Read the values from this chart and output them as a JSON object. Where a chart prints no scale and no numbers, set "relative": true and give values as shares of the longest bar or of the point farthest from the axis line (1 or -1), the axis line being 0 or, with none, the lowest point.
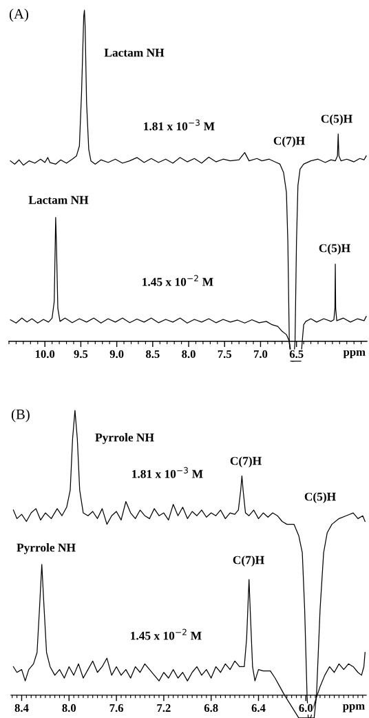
{
  "chart_data": [
    {
      "type": "line",
      "title": "(A)",
      "xlabel": "ppm",
      "relative": true,
      "xlim": [
        10.5,
        5.52
      ],
      "xticks": [
        {
          "value": 10.0,
          "label": "10.0"
        },
        {
          "value": 9.5,
          "label": "9.5"
        },
        {
          "value": 9.0,
          "label": "9.0"
        },
        {
          "value": 8.5,
          "label": "8.5"
        },
        {
          "value": 8.0,
          "label": "8.0"
        },
        {
          "value": 7.5,
          "label": "7.5"
        },
        {
          "value": 7.0,
          "label": "7.0"
        },
        {
          "value": 6.5,
          "label": "6.5"
        },
        {
          "value": 10.5,
          "label": null
        },
        {
          "value": 10.4,
          "label": null
        },
        {
          "value": 10.3,
          "label": null
        },
        {
          "value": 10.2,
          "label": null
        },
        {
          "value": 10.1,
          "label": null
        },
        {
          "value": 9.9,
          "label": null
        },
        {
          "value": 9.8,
          "label": null
        },
        {
          "value": 9.7,
          "label": null
        },
        {
          "value": 9.6,
          "label": null
        },
        {
          "value": 9.4,
          "label": null
        },
        {
          "value": 9.3,
          "label": null
        },
        {
          "value": 9.2,
          "label": null
        },
        {
          "value": 9.1,
          "label": null
        },
        {
          "value": 8.9,
          "label": null
        },
        {
          "value": 8.8,
          "label": null
        },
        {
          "value": 8.7,
          "label": null
        },
        {
          "value": 8.6,
          "label": null
        },
        {
          "value": 8.4,
          "label": null
        },
        {
          "value": 8.3,
          "label": null
        },
        {
          "value": 8.2,
          "label": null
        },
        {
          "value": 8.1,
          "label": null
        },
        {
          "value": 7.9,
          "label": null
        },
        {
          "value": 7.8,
          "label": null
        },
        {
          "value": 7.7,
          "label": null
        },
        {
          "value": 7.6,
          "label": null
        },
        {
          "value": 7.4,
          "label": null
        },
        {
          "value": 7.3,
          "label": null
        },
        {
          "value": 7.2,
          "label": null
        },
        {
          "value": 7.1,
          "label": null
        },
        {
          "value": 6.9,
          "label": null
        },
        {
          "value": 6.8,
          "label": null
        },
        {
          "value": 6.7,
          "label": null
        },
        {
          "value": 6.6,
          "label": null
        },
        {
          "value": 6.4,
          "label": null
        },
        {
          "value": 6.3,
          "label": null
        },
        {
          "value": 6.2,
          "label": null
        },
        {
          "value": 6.1,
          "label": null
        },
        {
          "value": 6.0,
          "label": null
        },
        {
          "value": 5.9,
          "label": null
        },
        {
          "value": 5.8,
          "label": null
        },
        {
          "value": 5.7,
          "label": null
        },
        {
          "value": 5.6,
          "label": null
        }
      ],
      "series": [
        {
          "color": "#000000",
          "x": [
            10.48,
            10.42,
            10.36,
            10.3,
            10.22,
            10.14,
            10.06,
            10.0,
            9.96,
            9.93,
            9.85,
            9.78,
            9.7,
            9.62,
            9.56,
            9.52,
            9.49,
            9.46,
            9.45,
            9.44,
            9.42,
            9.39,
            9.36,
            9.3,
            9.22,
            9.12,
            9.02,
            8.92,
            8.82,
            8.72,
            8.62,
            8.52,
            8.42,
            8.32,
            8.22,
            8.12,
            8.02,
            7.92,
            7.82,
            7.72,
            7.62,
            7.52,
            7.42,
            7.3,
            7.22,
            7.16,
            7.05,
            6.98,
            6.88,
            6.78,
            6.73,
            6.68,
            6.64,
            6.62,
            6.6,
            6.58,
            6.54,
            6.52,
            6.5,
            6.48,
            6.45,
            6.4,
            6.3,
            6.2,
            6.1,
            6.02,
            5.96,
            5.93,
            5.92,
            5.91,
            5.88,
            5.8,
            5.7,
            5.62,
            5.56,
            5.53
          ],
          "values": [
            0.545,
            0.535,
            0.548,
            0.532,
            0.545,
            0.538,
            0.55,
            0.54,
            0.555,
            0.54,
            0.535,
            0.548,
            0.538,
            0.55,
            0.56,
            0.59,
            0.75,
            0.98,
            1.0,
            0.95,
            0.72,
            0.58,
            0.545,
            0.535,
            0.548,
            0.54,
            0.55,
            0.538,
            0.545,
            0.555,
            0.54,
            0.552,
            0.54,
            0.55,
            0.538,
            0.555,
            0.542,
            0.552,
            0.538,
            0.556,
            0.542,
            0.55,
            0.545,
            0.548,
            0.57,
            0.545,
            0.552,
            0.545,
            0.55,
            0.54,
            0.535,
            0.51,
            0.45,
            0.3,
            0.0,
            -0.06,
            -0.06,
            0.0,
            0.3,
            0.47,
            0.52,
            0.535,
            0.545,
            0.55,
            0.54,
            0.548,
            0.545,
            0.56,
            0.626,
            0.56,
            0.545,
            0.55,
            0.542,
            0.552,
            0.548,
            0.56
          ]
        },
        {
          "color": "#000000",
          "x": [
            10.48,
            10.4,
            10.32,
            10.25,
            10.18,
            10.1,
            10.02,
            9.95,
            9.9,
            9.87,
            9.85,
            9.84,
            9.82,
            9.79,
            9.72,
            9.62,
            9.52,
            9.42,
            9.32,
            9.22,
            9.12,
            9.02,
            8.92,
            8.82,
            8.72,
            8.62,
            8.52,
            8.42,
            8.32,
            8.22,
            8.12,
            8.02,
            7.92,
            7.82,
            7.72,
            7.62,
            7.52,
            7.42,
            7.32,
            7.22,
            7.12,
            7.02,
            6.92,
            6.84,
            6.76,
            6.7,
            6.64,
            6.6,
            6.56,
            6.5,
            6.44,
            6.42,
            6.4,
            6.37,
            6.3,
            6.22,
            6.12,
            6.02,
            5.98,
            5.965,
            5.96,
            5.955,
            5.94,
            5.85,
            5.75,
            5.65,
            5.56,
            5.53
          ],
          "values": [
            0.065,
            0.055,
            0.07,
            0.058,
            0.068,
            0.055,
            0.066,
            0.058,
            0.07,
            0.12,
            0.374,
            0.3,
            0.1,
            0.06,
            0.07,
            0.056,
            0.068,
            0.058,
            0.07,
            0.055,
            0.068,
            0.058,
            0.07,
            0.056,
            0.067,
            0.058,
            0.07,
            0.056,
            0.066,
            0.058,
            0.07,
            0.055,
            0.066,
            0.058,
            0.068,
            0.056,
            0.066,
            0.058,
            0.064,
            0.055,
            0.065,
            0.056,
            0.06,
            0.05,
            0.045,
            0.03,
            0.02,
            0.0,
            -0.06,
            -0.06,
            -0.06,
            0.0,
            0.05,
            0.06,
            0.068,
            0.058,
            0.068,
            0.06,
            0.065,
            0.1,
            0.233,
            0.1,
            0.062,
            0.07,
            0.058,
            0.068,
            0.062,
            0.075
          ]
        }
      ],
      "annotations": [
        "Lactam NH",
        "1.81 x 10$^{−3}$ M",
        "C(7)H",
        "C(5)H",
        "Lactam NH",
        "1.45 x 10$^{−2}$ M",
        "C(5)H"
      ]
    },
    {
      "type": "line",
      "title": "(B)",
      "xlabel": "ppm",
      "relative": true,
      "xlim": [
        8.49,
        5.49
      ],
      "xticks": [
        {
          "value": 8.4,
          "label": "8.4"
        },
        {
          "value": 8.0,
          "label": "8.0"
        },
        {
          "value": 7.6,
          "label": "7.6"
        },
        {
          "value": 7.2,
          "label": "7.2"
        },
        {
          "value": 6.8,
          "label": "6.8"
        },
        {
          "value": 6.4,
          "label": "6.4"
        },
        {
          "value": 6.0,
          "label": "6.0"
        },
        {
          "value": 8.48,
          "label": null
        },
        {
          "value": 8.44,
          "label": null
        },
        {
          "value": 8.36,
          "label": null
        },
        {
          "value": 8.32,
          "label": null
        },
        {
          "value": 8.28,
          "label": null
        },
        {
          "value": 8.24,
          "label": null
        },
        {
          "value": 8.2,
          "label": null
        },
        {
          "value": 8.16,
          "label": null
        },
        {
          "value": 8.12,
          "label": null
        },
        {
          "value": 8.08,
          "label": null
        },
        {
          "value": 8.04,
          "label": null
        },
        {
          "value": 7.96,
          "label": null
        },
        {
          "value": 7.92,
          "label": null
        },
        {
          "value": 7.88,
          "label": null
        },
        {
          "value": 7.84,
          "label": null
        },
        {
          "value": 7.8,
          "label": null
        },
        {
          "value": 7.76,
          "label": null
        },
        {
          "value": 7.72,
          "label": null
        },
        {
          "value": 7.68,
          "label": null
        },
        {
          "value": 7.64,
          "label": null
        },
        {
          "value": 7.56,
          "label": null
        },
        {
          "value": 7.52,
          "label": null
        },
        {
          "value": 7.48,
          "label": null
        },
        {
          "value": 7.44,
          "label": null
        },
        {
          "value": 7.4,
          "label": null
        },
        {
          "value": 7.36,
          "label": null
        },
        {
          "value": 7.32,
          "label": null
        },
        {
          "value": 7.28,
          "label": null
        },
        {
          "value": 7.24,
          "label": null
        },
        {
          "value": 7.16,
          "label": null
        },
        {
          "value": 7.12,
          "label": null
        },
        {
          "value": 7.08,
          "label": null
        },
        {
          "value": 7.04,
          "label": null
        },
        {
          "value": 7.0,
          "label": null
        },
        {
          "value": 6.96,
          "label": null
        },
        {
          "value": 6.92,
          "label": null
        },
        {
          "value": 6.88,
          "label": null
        },
        {
          "value": 6.84,
          "label": null
        },
        {
          "value": 6.76,
          "label": null
        },
        {
          "value": 6.72,
          "label": null
        },
        {
          "value": 6.68,
          "label": null
        },
        {
          "value": 6.64,
          "label": null
        },
        {
          "value": 6.6,
          "label": null
        },
        {
          "value": 6.56,
          "label": null
        },
        {
          "value": 6.52,
          "label": null
        },
        {
          "value": 6.48,
          "label": null
        },
        {
          "value": 6.44,
          "label": null
        },
        {
          "value": 6.36,
          "label": null
        },
        {
          "value": 6.32,
          "label": null
        },
        {
          "value": 6.28,
          "label": null
        },
        {
          "value": 6.24,
          "label": null
        },
        {
          "value": 6.2,
          "label": null
        },
        {
          "value": 6.16,
          "label": null
        },
        {
          "value": 6.12,
          "label": null
        },
        {
          "value": 6.08,
          "label": null
        },
        {
          "value": 6.04,
          "label": null
        },
        {
          "value": 5.96,
          "label": null
        },
        {
          "value": 5.92,
          "label": null
        },
        {
          "value": 5.88,
          "label": null
        },
        {
          "value": 5.84,
          "label": null
        },
        {
          "value": 5.8,
          "label": null
        },
        {
          "value": 5.76,
          "label": null
        },
        {
          "value": 5.72,
          "label": null
        },
        {
          "value": 5.68,
          "label": null
        },
        {
          "value": 5.64,
          "label": null
        },
        {
          "value": 5.6,
          "label": null
        },
        {
          "value": 5.56,
          "label": null
        },
        {
          "value": 5.52,
          "label": null
        }
      ],
      "series": [
        {
          "color": "#000000",
          "x": [
            8.47,
            8.44,
            8.4,
            8.36,
            8.32,
            8.28,
            8.24,
            8.2,
            8.15,
            8.1,
            8.06,
            8.02,
            7.99,
            7.97,
            7.95,
            7.93,
            7.91,
            7.88,
            7.84,
            7.8,
            7.76,
            7.72,
            7.68,
            7.64,
            7.6,
            7.56,
            7.52,
            7.48,
            7.44,
            7.4,
            7.36,
            7.32,
            7.28,
            7.24,
            7.2,
            7.16,
            7.12,
            7.08,
            7.04,
            7.0,
            6.96,
            6.92,
            6.88,
            6.84,
            6.8,
            6.76,
            6.72,
            6.68,
            6.64,
            6.6,
            6.57,
            6.55,
            6.54,
            6.53,
            6.51,
            6.48,
            6.44,
            6.4,
            6.36,
            6.32,
            6.28,
            6.24,
            6.2,
            6.16,
            6.1,
            6.06,
            6.03,
            6.01,
            5.99,
            5.98,
            5.93,
            5.91,
            5.88,
            5.85,
            5.82,
            5.78,
            5.72,
            5.66,
            5.6,
            5.56,
            5.52,
            5.5
          ],
          "values": [
            0.65,
            0.62,
            0.635,
            0.61,
            0.64,
            0.655,
            0.615,
            0.64,
            0.62,
            0.655,
            0.63,
            0.66,
            0.72,
            0.9,
            1.0,
            0.9,
            0.72,
            0.64,
            0.63,
            0.645,
            0.62,
            0.655,
            0.6,
            0.63,
            0.645,
            0.615,
            0.68,
            0.64,
            0.62,
            0.65,
            0.63,
            0.62,
            0.655,
            0.63,
            0.64,
            0.615,
            0.67,
            0.63,
            0.66,
            0.62,
            0.645,
            0.63,
            0.65,
            0.625,
            0.64,
            0.63,
            0.65,
            0.62,
            0.64,
            0.635,
            0.65,
            0.72,
            0.77,
            0.72,
            0.64,
            0.63,
            0.65,
            0.62,
            0.64,
            0.625,
            0.64,
            0.63,
            0.61,
            0.6,
            0.6,
            0.56,
            0.5,
            0.3,
            0.0,
            -0.08,
            -0.08,
            0.0,
            0.3,
            0.5,
            0.57,
            0.6,
            0.62,
            0.63,
            0.64,
            0.62,
            0.63,
            0.61
          ]
        },
        {
          "color": "#000000",
          "x": [
            8.47,
            8.44,
            8.4,
            8.37,
            8.34,
            8.3,
            8.27,
            8.25,
            8.23,
            8.21,
            8.19,
            8.16,
            8.12,
            8.08,
            8.04,
            8.0,
            7.96,
            7.92,
            7.88,
            7.84,
            7.8,
            7.76,
            7.72,
            7.68,
            7.64,
            7.6,
            7.56,
            7.52,
            7.48,
            7.44,
            7.4,
            7.36,
            7.32,
            7.28,
            7.24,
            7.2,
            7.16,
            7.12,
            7.08,
            7.04,
            7.0,
            6.96,
            6.92,
            6.88,
            6.84,
            6.8,
            6.76,
            6.72,
            6.68,
            6.64,
            6.6,
            6.56,
            6.52,
            6.5,
            6.48,
            6.47,
            6.45,
            6.43,
            6.4,
            6.36,
            6.3,
            6.26,
            6.22,
            6.18,
            6.12,
            6.06,
            5.96,
            5.92,
            5.88,
            5.84,
            5.8,
            5.76,
            5.72,
            5.68,
            5.64,
            5.6,
            5.56,
            5.53,
            5.51,
            5.5
          ],
          "values": [
            0.1,
            0.08,
            0.09,
            0.05,
            0.09,
            0.11,
            0.15,
            0.3,
            0.459,
            0.3,
            0.15,
            0.1,
            0.07,
            0.09,
            0.06,
            0.1,
            0.07,
            0.11,
            0.06,
            0.09,
            0.12,
            0.08,
            0.1,
            0.13,
            0.07,
            0.1,
            0.07,
            0.09,
            0.06,
            0.1,
            0.08,
            0.11,
            0.09,
            0.07,
            0.05,
            0.08,
            0.06,
            0.09,
            0.06,
            0.08,
            0.05,
            0.08,
            0.1,
            0.07,
            0.09,
            0.06,
            0.1,
            0.08,
            0.11,
            0.09,
            0.12,
            0.1,
            0.1,
            0.2,
            0.406,
            0.3,
            0.1,
            0.05,
            0.09,
            0.085,
            0.085,
            0.06,
            0.03,
            0.0,
            -0.04,
            -0.08,
            -0.08,
            -0.02,
            0.03,
            0.07,
            0.1,
            0.08,
            0.11,
            0.09,
            0.11,
            0.1,
            0.08,
            0.07,
            0.1,
            0.15
          ]
        }
      ],
      "annotations": [
        "Pyrrole NH",
        "1.81 x 10$^{−3}$ M",
        "C(7)H",
        "C(5)H",
        "Pyrrole NH",
        "C(7)H",
        "1.45 x 10$^{−2}$ M"
      ]
    }
  ]
}
